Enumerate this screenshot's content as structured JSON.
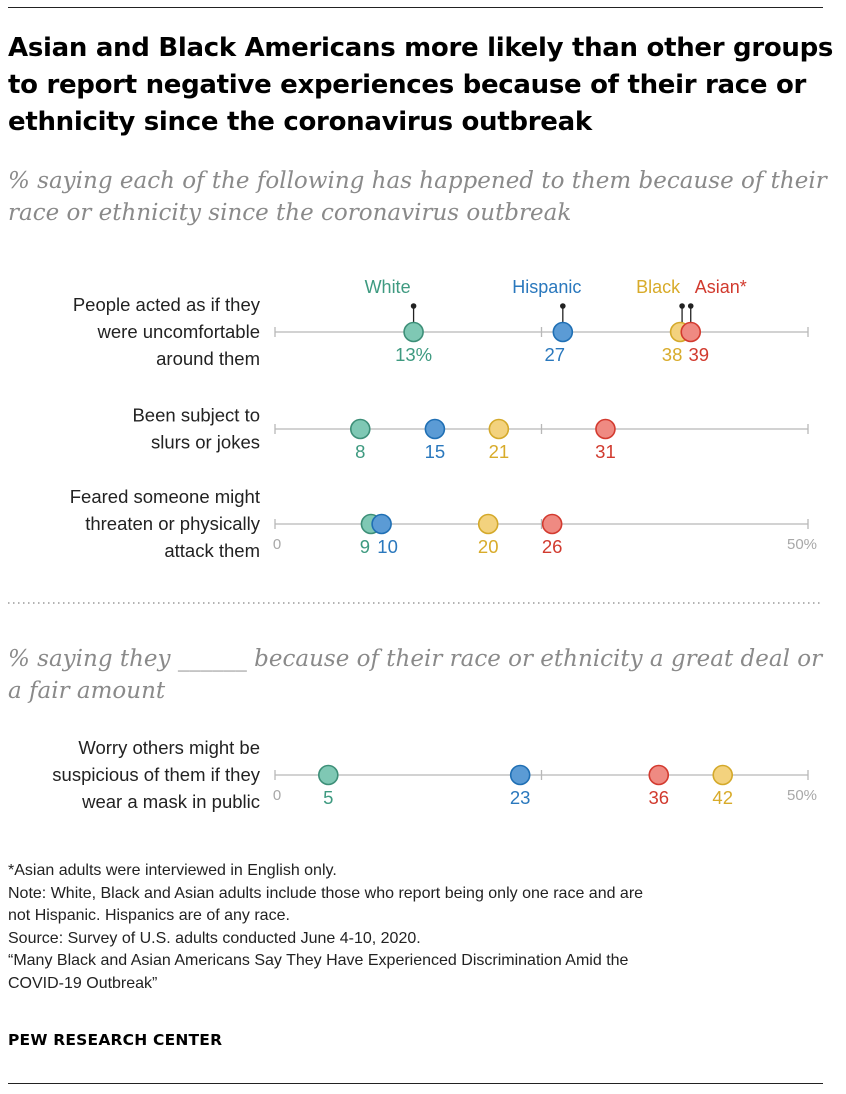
{
  "chart_data": {
    "type": "dot-plot",
    "title": "Asian and Black Americans more likely than other groups to report negative experiences because of their race or ethnicity since the coronavirus outbreak",
    "xlim": [
      0,
      50
    ],
    "tick_labels": {
      "min": "0",
      "max": "50%"
    },
    "series": [
      {
        "name": "White",
        "color": "#7fc8b4"
      },
      {
        "name": "Hispanic",
        "color": "#5b9bd5"
      },
      {
        "name": "Black",
        "color": "#f3d27e"
      },
      {
        "name": "Asian*",
        "color": "#ef8a82"
      }
    ],
    "panels": [
      {
        "subtitle": "% saying each of the following has happened to them because of their race or ethnicity since the coronavirus outbreak",
        "rows": [
          {
            "label": [
              "People acted as if they",
              "were uncomfortable",
              "around them"
            ],
            "values": [
              13,
              27,
              38,
              39
            ],
            "value_labels": [
              "13%",
              "27",
              "38",
              "39"
            ]
          },
          {
            "label": [
              "Been subject to",
              "slurs or jokes"
            ],
            "values": [
              8,
              15,
              21,
              31
            ],
            "value_labels": [
              "8",
              "15",
              "21",
              "31"
            ]
          },
          {
            "label": [
              "Feared someone might",
              "threaten or physically",
              "attack them"
            ],
            "values": [
              9,
              10,
              20,
              26
            ],
            "value_labels": [
              "9",
              "10",
              "20",
              "26"
            ]
          }
        ]
      },
      {
        "subtitle": "% saying they ______ because of their race or ethnicity a great deal or a fair amount",
        "rows": [
          {
            "label": [
              "Worry others might be",
              "suspicious of them if they",
              "wear a mask in public"
            ],
            "values": [
              5,
              23,
              42,
              36
            ],
            "value_labels": [
              "5",
              "23",
              "42",
              "36"
            ]
          }
        ]
      }
    ]
  },
  "notes": {
    "asterisk": "*Asian adults were interviewed in English only.",
    "note_line1": "Note: White, Black and Asian adults include those who report being only one race and are",
    "note_line2": "not Hispanic. Hispanics are of any race.",
    "source": "Source: Survey of U.S. adults conducted June 4-10, 2020.",
    "report_line1": "“Many Black and Asian Americans Say They Have Experienced Discrimination Amid the",
    "report_line2": "COVID-19 Outbreak”"
  },
  "brand": "PEW RESEARCH CENTER"
}
